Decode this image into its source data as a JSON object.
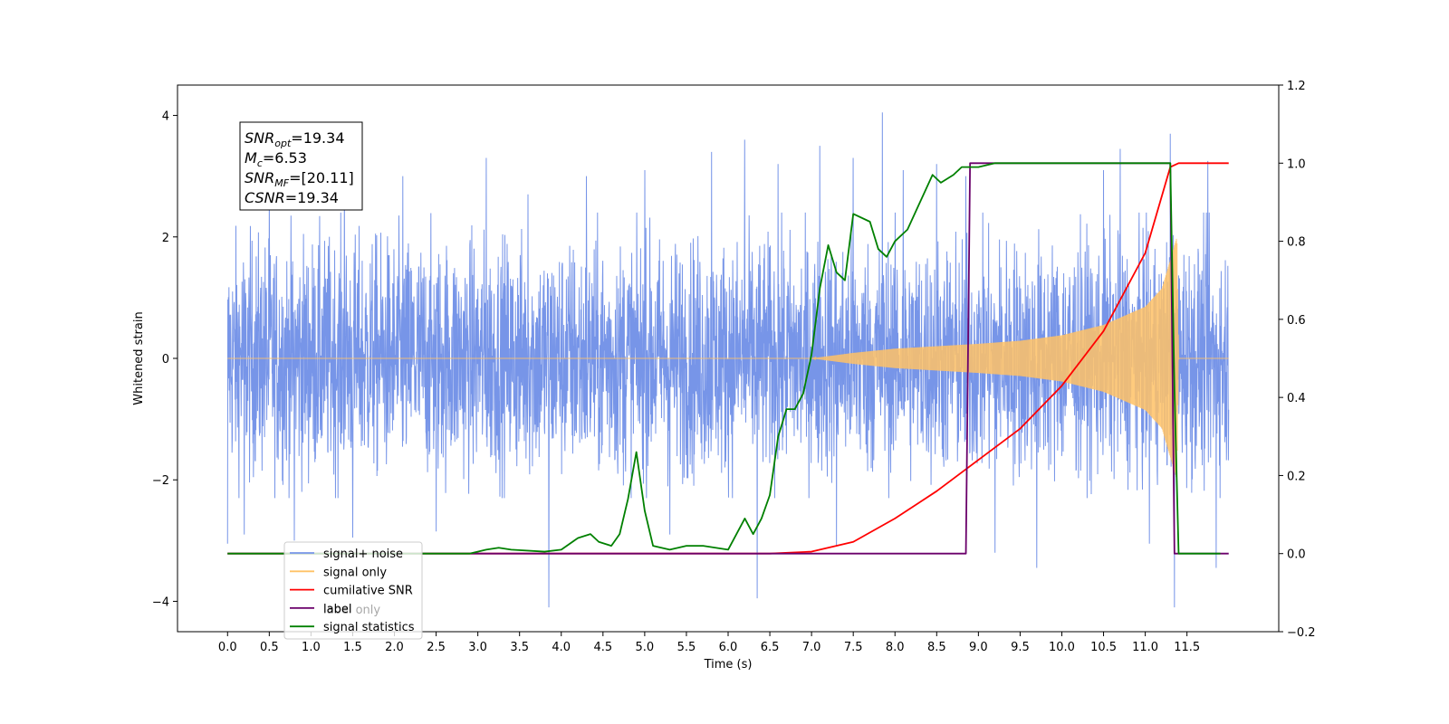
{
  "chart_data": {
    "type": "line",
    "xlabel": "Time (s)",
    "ylabel": "Whitened strain",
    "xlim": [
      -0.6,
      12.6
    ],
    "ylim": [
      -4.5,
      4.5
    ],
    "y2lim": [
      -0.2,
      1.2
    ],
    "x_ticks": [
      0.0,
      0.5,
      1.0,
      1.5,
      2.0,
      2.5,
      3.0,
      3.5,
      4.0,
      4.5,
      5.0,
      5.5,
      6.0,
      6.5,
      7.0,
      7.5,
      8.0,
      8.5,
      9.0,
      9.5,
      10.0,
      10.5,
      11.0,
      11.5
    ],
    "x_tick_labels": [
      "0.0",
      "0.5",
      "1.0",
      "1.5",
      "2.0",
      "2.5",
      "3.0",
      "3.5",
      "4.0",
      "4.5",
      "5.0",
      "5.5",
      "6.0",
      "6.5",
      "7.0",
      "7.5",
      "8.0",
      "8.5",
      "9.0",
      "9.5",
      "10.0",
      "10.5",
      "11.0",
      "11.5"
    ],
    "y_ticks": [
      -4,
      -2,
      0,
      2,
      4
    ],
    "y_tick_labels": [
      "−4",
      "−2",
      "0",
      "2",
      "4"
    ],
    "y2_ticks": [
      -0.2,
      0.0,
      0.2,
      0.4,
      0.6,
      0.8,
      1.0,
      1.2
    ],
    "y2_tick_labels": [
      "−0.2",
      "0.0",
      "0.2",
      "0.4",
      "0.6",
      "0.8",
      "1.0",
      "1.2"
    ],
    "grid": false,
    "legend_placement": "lower-left",
    "annotation": {
      "lines": [
        {
          "main": "SNR",
          "sub": "opt",
          "rest": "=19.34"
        },
        {
          "main": "M",
          "sub": "c",
          "rest": "=6.53"
        },
        {
          "main": "SNR",
          "sub": "MF",
          "rest": "=[20.11]"
        },
        {
          "main": "CSNR",
          "sub": "",
          "rest": "=19.34"
        }
      ]
    },
    "legend": [
      {
        "label": "signal+ noise",
        "color": "#7795e8"
      },
      {
        "label": "signal only",
        "color": "#ffc266"
      },
      {
        "label": "cumilative SNR",
        "color": "#ff0000"
      },
      {
        "label": "label",
        "color": "#6a006a"
      },
      {
        "label": "signal statistics",
        "color": "#008000"
      }
    ],
    "hidden_legend_label": "label only",
    "series": [
      {
        "name": "signal+ noise",
        "axis": "left",
        "color": "#7795e8",
        "kind": "noise",
        "x_range": [
          0.0,
          12.0
        ],
        "band": [
          -2.3,
          2.4
        ],
        "spikes": [
          [
            0.0,
            1.75
          ],
          [
            0.0,
            -3.05
          ],
          [
            0.2,
            -2.9
          ],
          [
            0.5,
            2.7
          ],
          [
            0.8,
            3.15
          ],
          [
            0.8,
            -3.0
          ],
          [
            1.4,
            3.25
          ],
          [
            1.5,
            -2.95
          ],
          [
            2.1,
            3.0
          ],
          [
            2.5,
            -2.85
          ],
          [
            3.1,
            3.3
          ],
          [
            3.6,
            2.7
          ],
          [
            3.85,
            -4.1
          ],
          [
            4.3,
            3.0
          ],
          [
            5.0,
            3.1
          ],
          [
            5.3,
            -2.9
          ],
          [
            5.8,
            3.4
          ],
          [
            6.2,
            3.6
          ],
          [
            6.35,
            -3.95
          ],
          [
            6.6,
            3.2
          ],
          [
            7.1,
            3.5
          ],
          [
            7.3,
            -3.1
          ],
          [
            7.5,
            3.3
          ],
          [
            7.85,
            4.05
          ],
          [
            8.1,
            3.1
          ],
          [
            8.5,
            3.2
          ],
          [
            8.85,
            3.0
          ],
          [
            9.2,
            -3.2
          ],
          [
            9.7,
            -3.45
          ],
          [
            10.5,
            3.1
          ],
          [
            10.7,
            3.45
          ],
          [
            11.05,
            -3.05
          ],
          [
            11.3,
            3.7
          ],
          [
            11.35,
            -4.1
          ],
          [
            11.75,
            3.25
          ],
          [
            11.85,
            -3.45
          ]
        ]
      },
      {
        "name": "signal only",
        "axis": "left",
        "color": "#ffc266",
        "kind": "chirp",
        "x": [
          0.0,
          7.0,
          7.5,
          8.0,
          8.5,
          9.0,
          9.5,
          10.0,
          10.5,
          11.0,
          11.2,
          11.38,
          11.4,
          12.0
        ],
        "envelope": [
          0.0,
          0.0,
          0.09,
          0.16,
          0.2,
          0.24,
          0.29,
          0.38,
          0.55,
          0.85,
          1.15,
          2.0,
          0.0,
          0.0
        ]
      },
      {
        "name": "cumilative SNR",
        "axis": "right",
        "color": "#ff0000",
        "x": [
          0.0,
          6.5,
          7.0,
          7.5,
          8.0,
          8.5,
          9.0,
          9.5,
          10.0,
          10.5,
          11.0,
          11.3,
          11.4,
          12.0
        ],
        "y": [
          0.0,
          0.0,
          0.005,
          0.03,
          0.09,
          0.16,
          0.24,
          0.32,
          0.43,
          0.57,
          0.77,
          0.99,
          1.0,
          1.0
        ]
      },
      {
        "name": "label",
        "axis": "right",
        "color": "#6a006a",
        "x": [
          0.0,
          8.85,
          8.9,
          11.3,
          11.35,
          12.0
        ],
        "y": [
          0.0,
          0.0,
          1.0,
          1.0,
          0.0,
          0.0
        ]
      },
      {
        "name": "signal statistics",
        "axis": "right",
        "color": "#008000",
        "x": [
          0.0,
          2.9,
          3.1,
          3.25,
          3.4,
          3.8,
          4.0,
          4.2,
          4.35,
          4.45,
          4.6,
          4.7,
          4.8,
          4.9,
          5.0,
          5.1,
          5.3,
          5.5,
          5.7,
          6.0,
          6.2,
          6.3,
          6.4,
          6.5,
          6.6,
          6.7,
          6.8,
          6.9,
          7.0,
          7.1,
          7.2,
          7.3,
          7.4,
          7.5,
          7.7,
          7.8,
          7.9,
          8.0,
          8.15,
          8.3,
          8.45,
          8.55,
          8.7,
          8.8,
          9.0,
          9.2,
          9.5,
          9.8,
          10.0,
          10.5,
          11.0,
          11.3,
          11.35,
          11.4,
          11.5,
          11.6,
          11.8,
          11.9
        ],
        "y": [
          0.0,
          0.0,
          0.01,
          0.015,
          0.01,
          0.005,
          0.01,
          0.04,
          0.05,
          0.03,
          0.02,
          0.05,
          0.14,
          0.26,
          0.11,
          0.02,
          0.01,
          0.02,
          0.02,
          0.01,
          0.09,
          0.05,
          0.09,
          0.15,
          0.3,
          0.37,
          0.37,
          0.41,
          0.51,
          0.68,
          0.79,
          0.72,
          0.7,
          0.87,
          0.85,
          0.78,
          0.76,
          0.8,
          0.83,
          0.9,
          0.97,
          0.95,
          0.97,
          0.99,
          0.99,
          1.0,
          1.0,
          1.0,
          1.0,
          1.0,
          1.0,
          1.0,
          0.42,
          0.0,
          0.0,
          0.0,
          0.0,
          0.0
        ]
      }
    ]
  }
}
